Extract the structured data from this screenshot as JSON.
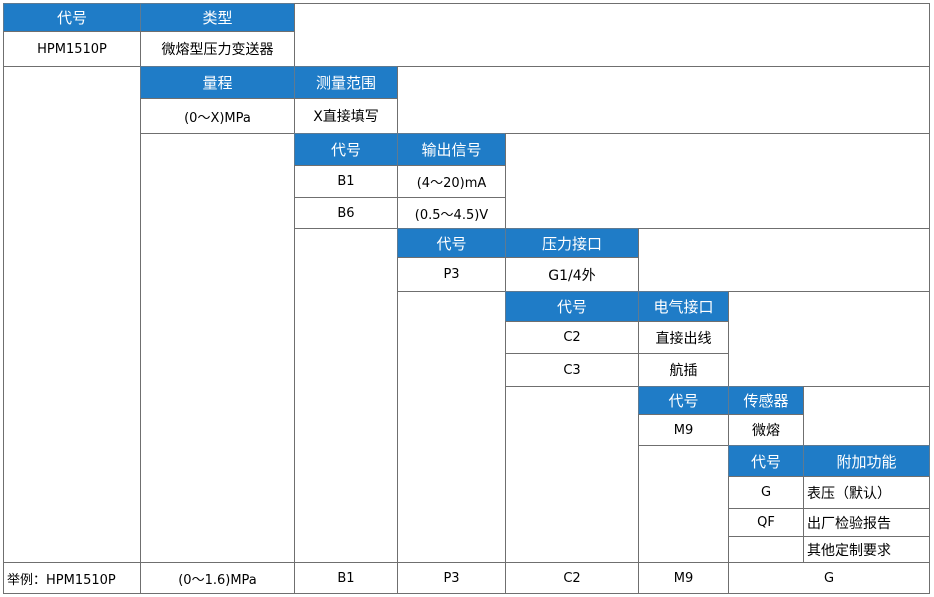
{
  "header": {
    "code": "代号",
    "type": "类型"
  },
  "model": {
    "code": "HPM1510P",
    "type": "微熔型压力变送器"
  },
  "range": {
    "header": "量程",
    "measure_header": "测量范围",
    "value": "(0～X)MPa",
    "measure_value": "X直接填写"
  },
  "output": {
    "code_header": "代号",
    "header": "输出信号",
    "rows": [
      {
        "code": "B1",
        "value": "(4～20)mA"
      },
      {
        "code": "B6",
        "value": "(0.5～4.5)V"
      }
    ]
  },
  "pressure": {
    "code_header": "代号",
    "header": "压力接口",
    "rows": [
      {
        "code": "P3",
        "value": "G1/4外"
      }
    ]
  },
  "electric": {
    "code_header": "代号",
    "header": "电气接口",
    "rows": [
      {
        "code": "C2",
        "value": "直接出线"
      },
      {
        "code": "C3",
        "value": "航插"
      }
    ]
  },
  "sensor": {
    "code_header": "代号",
    "header": "传感器",
    "rows": [
      {
        "code": "M9",
        "value": "微熔"
      }
    ]
  },
  "extra": {
    "code_header": "代号",
    "header": "附加功能",
    "rows": [
      {
        "code": "G",
        "value": "表压（默认）"
      },
      {
        "code": "QF",
        "value": "出厂检验报告"
      },
      {
        "code": "",
        "value": "其他定制要求"
      }
    ]
  },
  "example": {
    "label": "举例：HPM1510P",
    "range": "(0～1.6)MPa",
    "output": "B1",
    "pressure": "P3",
    "electric": "C2",
    "sensor": "M9",
    "extra": "G"
  },
  "colors": {
    "header_bg": "#1f7cc7",
    "header_text": "#ffffff",
    "border": "#6f6f6f"
  }
}
